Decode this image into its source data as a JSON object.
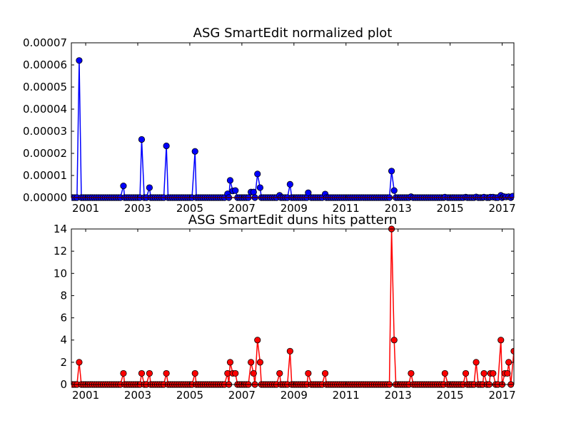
{
  "chart_data": [
    {
      "type": "line",
      "title": "ASG SmartEdit normalized plot",
      "xlabel": "",
      "ylabel": "",
      "xlim": [
        2000.45,
        2017.45
      ],
      "ylim": [
        0,
        7e-05
      ],
      "grid": false,
      "legend": "none",
      "x_ticks": [
        2001,
        2003,
        2005,
        2007,
        2009,
        2011,
        2013,
        2015,
        2017
      ],
      "x_tick_labels": [
        "2001",
        "2003",
        "2005",
        "2007",
        "2009",
        "2011",
        "2013",
        "2015",
        "2017"
      ],
      "y_ticks": [
        0,
        1e-05,
        2e-05,
        3e-05,
        4e-05,
        5e-05,
        6e-05,
        7e-05
      ],
      "y_tick_labels": [
        "0.00000",
        "0.00001",
        "0.00002",
        "0.00003",
        "0.00004",
        "0.00005",
        "0.00006",
        "0.00007"
      ],
      "series": [
        {
          "color": "#0000ff",
          "marker": "circle",
          "x_start": 2000.5,
          "x_step": 0.0833333,
          "nonzero": [
            {
              "x": 2000.75,
              "y": 6.2e-05
            },
            {
              "x": 2002.45,
              "y": 5.3e-06
            },
            {
              "x": 2003.15,
              "y": 2.63e-05
            },
            {
              "x": 2003.45,
              "y": 4.5e-06
            },
            {
              "x": 2004.1,
              "y": 2.34e-05
            },
            {
              "x": 2005.2,
              "y": 2.09e-05
            },
            {
              "x": 2006.45,
              "y": 1.7e-06
            },
            {
              "x": 2006.55,
              "y": 7.8e-06
            },
            {
              "x": 2006.65,
              "y": 3e-06
            },
            {
              "x": 2006.75,
              "y": 3.2e-06
            },
            {
              "x": 2007.35,
              "y": 2.5e-06
            },
            {
              "x": 2007.45,
              "y": 2.5e-06
            },
            {
              "x": 2007.6,
              "y": 1.07e-05
            },
            {
              "x": 2007.7,
              "y": 4.5e-06
            },
            {
              "x": 2008.45,
              "y": 1e-06
            },
            {
              "x": 2008.85,
              "y": 6e-06
            },
            {
              "x": 2009.55,
              "y": 2.2e-06
            },
            {
              "x": 2010.2,
              "y": 1.6e-06
            },
            {
              "x": 2012.75,
              "y": 1.2e-05
            },
            {
              "x": 2012.85,
              "y": 3.2e-06
            },
            {
              "x": 2013.5,
              "y": 4e-07
            },
            {
              "x": 2014.8,
              "y": 2e-07
            },
            {
              "x": 2015.6,
              "y": 2e-07
            },
            {
              "x": 2016.0,
              "y": 3e-07
            },
            {
              "x": 2016.3,
              "y": 2e-07
            },
            {
              "x": 2016.55,
              "y": 2e-07
            },
            {
              "x": 2016.65,
              "y": 2e-07
            },
            {
              "x": 2016.95,
              "y": 1e-06
            },
            {
              "x": 2017.05,
              "y": 5e-07
            },
            {
              "x": 2017.15,
              "y": 3e-07
            },
            {
              "x": 2017.25,
              "y": 4e-07
            },
            {
              "x": 2017.4,
              "y": 6e-07
            }
          ]
        },
        {
          "color": "#ff0000",
          "marker": "none",
          "type": "flat-line",
          "y": 0
        }
      ]
    },
    {
      "type": "line",
      "title": "ASG SmartEdit duns hits pattern",
      "xlabel": "",
      "ylabel": "",
      "xlim": [
        2000.45,
        2017.45
      ],
      "ylim": [
        0,
        14
      ],
      "grid": false,
      "legend": "none",
      "x_ticks": [
        2001,
        2003,
        2005,
        2007,
        2009,
        2011,
        2013,
        2015,
        2017
      ],
      "x_tick_labels": [
        "2001",
        "2003",
        "2005",
        "2007",
        "2009",
        "2011",
        "2013",
        "2015",
        "2017"
      ],
      "y_ticks": [
        0,
        2,
        4,
        6,
        8,
        10,
        12,
        14
      ],
      "y_tick_labels": [
        "0",
        "2",
        "4",
        "6",
        "8",
        "10",
        "12",
        "14"
      ],
      "series": [
        {
          "color": "#ff0000",
          "marker": "circle",
          "x_start": 2000.5,
          "x_step": 0.0833333,
          "nonzero": [
            {
              "x": 2000.75,
              "y": 2
            },
            {
              "x": 2002.45,
              "y": 1
            },
            {
              "x": 2003.15,
              "y": 1
            },
            {
              "x": 2003.45,
              "y": 1
            },
            {
              "x": 2004.1,
              "y": 1
            },
            {
              "x": 2005.2,
              "y": 1
            },
            {
              "x": 2006.45,
              "y": 1
            },
            {
              "x": 2006.55,
              "y": 2
            },
            {
              "x": 2006.65,
              "y": 1
            },
            {
              "x": 2006.75,
              "y": 1
            },
            {
              "x": 2007.35,
              "y": 2
            },
            {
              "x": 2007.45,
              "y": 1
            },
            {
              "x": 2007.6,
              "y": 4
            },
            {
              "x": 2007.7,
              "y": 2
            },
            {
              "x": 2008.45,
              "y": 1
            },
            {
              "x": 2008.85,
              "y": 3
            },
            {
              "x": 2009.55,
              "y": 1
            },
            {
              "x": 2010.2,
              "y": 1
            },
            {
              "x": 2012.75,
              "y": 14
            },
            {
              "x": 2012.85,
              "y": 4
            },
            {
              "x": 2013.5,
              "y": 1
            },
            {
              "x": 2014.8,
              "y": 1
            },
            {
              "x": 2015.6,
              "y": 1
            },
            {
              "x": 2016.0,
              "y": 2
            },
            {
              "x": 2016.3,
              "y": 1
            },
            {
              "x": 2016.55,
              "y": 1
            },
            {
              "x": 2016.65,
              "y": 1
            },
            {
              "x": 2016.95,
              "y": 4
            },
            {
              "x": 2017.05,
              "y": 2
            },
            {
              "x": 2017.1,
              "y": 1
            },
            {
              "x": 2017.2,
              "y": 1
            },
            {
              "x": 2017.25,
              "y": 2
            },
            {
              "x": 2017.45,
              "y": 3
            }
          ]
        }
      ]
    }
  ]
}
